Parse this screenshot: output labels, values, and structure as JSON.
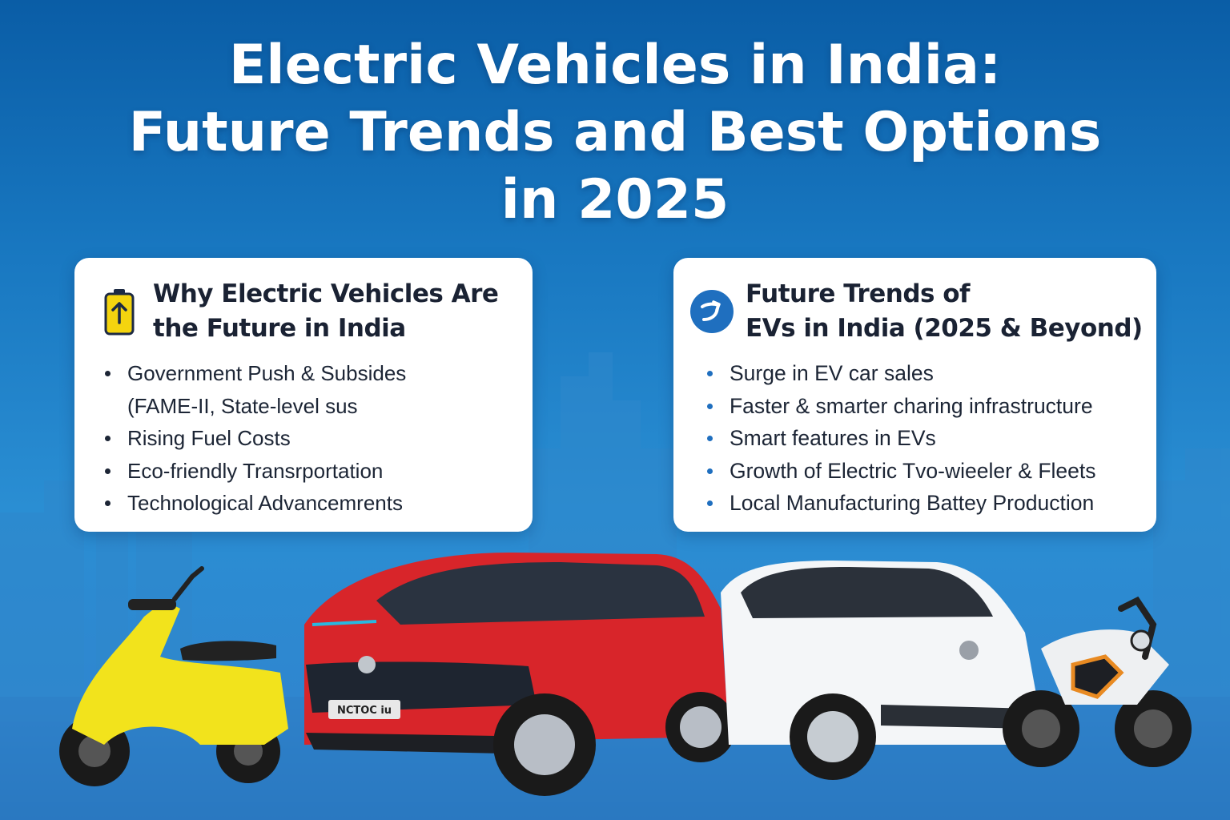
{
  "header": {
    "title_line1": "Electric Vehicles in India:",
    "title_line2": "Future Trends and Best Options",
    "title_line3": "in 2025"
  },
  "left_card": {
    "icon": "battery-icon",
    "title_line1": "Why Electric Vehicles Are",
    "title_line2": "the Future in India",
    "points": [
      "Government Push & Subsides",
      "(FAME-II, State-level sus",
      "Rising Fuel Costs",
      "Eco-friendly Transrportation",
      "Technological Advancemrents"
    ]
  },
  "right_card": {
    "icon": "trend-icon",
    "title_line1": "Future Trends of",
    "title_line2": "EVs in India (2025 & Beyond)",
    "points": [
      "Surge in EV car sales",
      "Faster & smarter charing infrastructure",
      "Smart features in EVs",
      "Growth of Electric Tvo-wieeler & Fleets",
      "Local Manufacturing Battey Production"
    ]
  },
  "vehicles": {
    "suv_plate": "NCTOC iu",
    "colors": {
      "scooter": "#f2e31c",
      "red_suv": "#d8252a",
      "white_suv": "#f4f6f8",
      "motorcycle": "#eef0f2",
      "accent": "#e88a22"
    }
  },
  "theme": {
    "background": "#1877c0",
    "card": "#ffffff",
    "bullet_blue": "#1f6fbf",
    "icon_yellow": "#f4d40f"
  }
}
